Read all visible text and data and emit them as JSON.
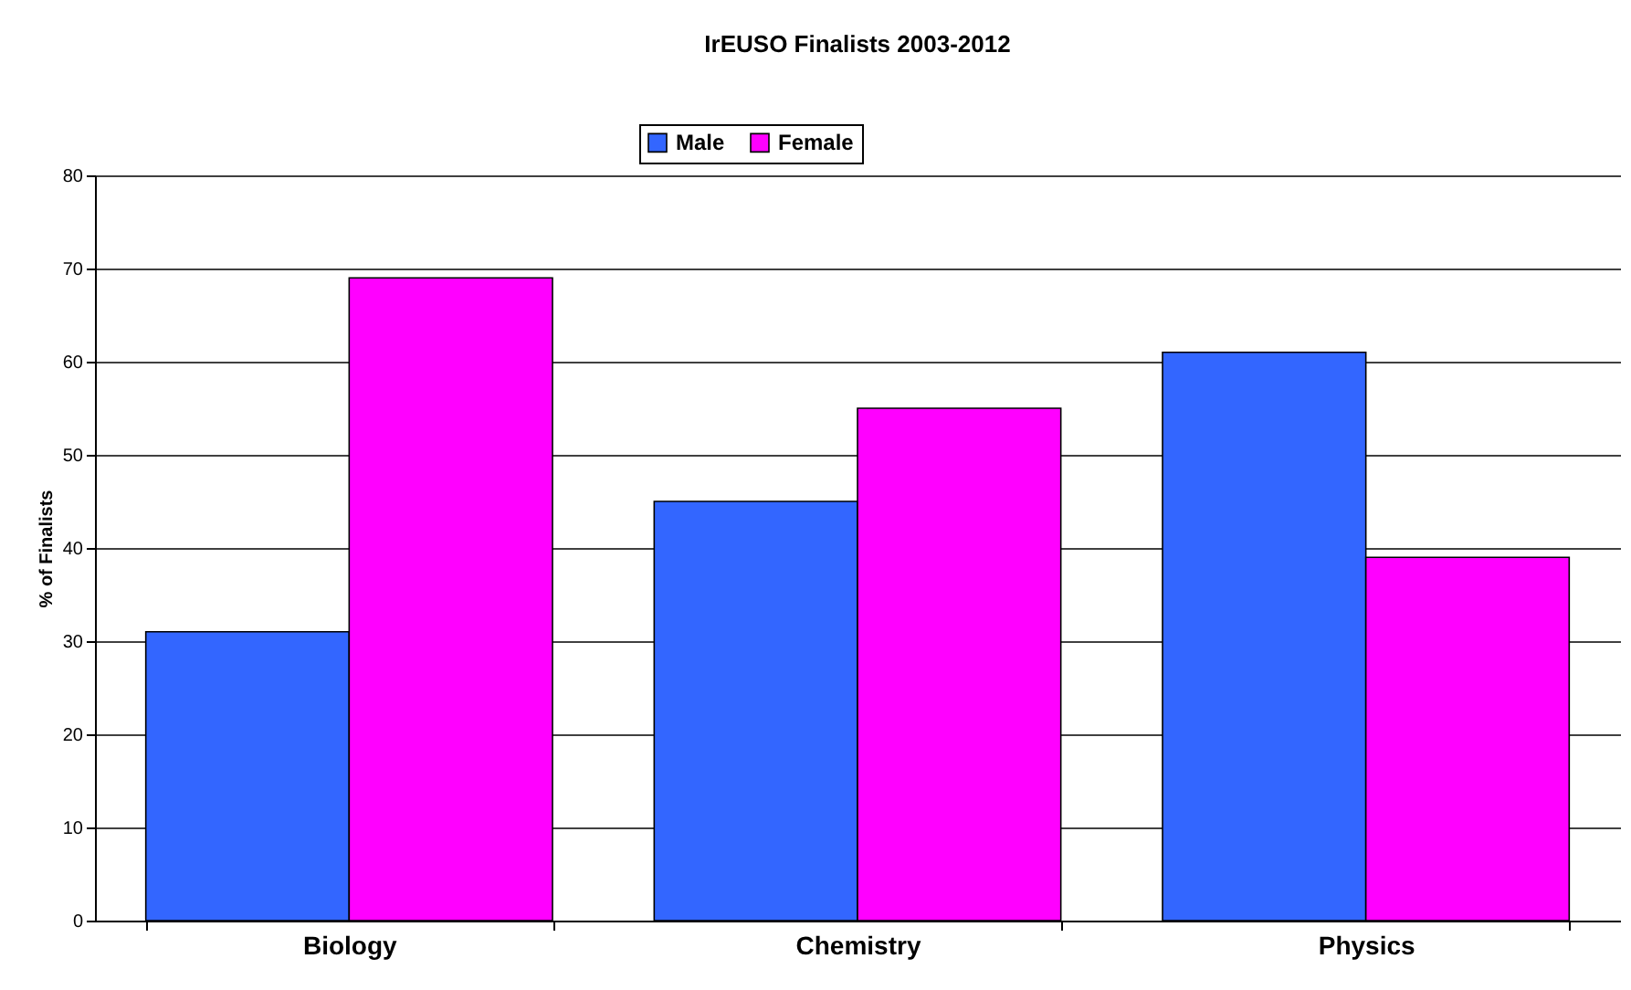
{
  "chart_data": {
    "type": "bar",
    "title": "IrEUSO Finalists 2003-2012",
    "ylabel": "% of Finalists",
    "categories": [
      "Biology",
      "Chemistry",
      "Physics"
    ],
    "series": [
      {
        "name": "Male",
        "color": "#3366ff",
        "values": [
          31,
          45,
          61
        ]
      },
      {
        "name": "Female",
        "color": "#ff00ff",
        "values": [
          69,
          55,
          39
        ]
      }
    ],
    "ylim": [
      0,
      80
    ],
    "yticks": [
      0,
      10,
      20,
      30,
      40,
      50,
      60,
      70,
      80
    ],
    "grid": "y",
    "legend": "top"
  }
}
